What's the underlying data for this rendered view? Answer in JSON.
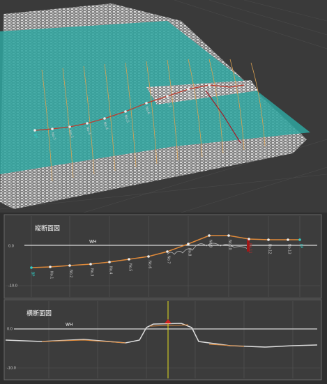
{
  "longitudinal": {
    "title": "縦断面図",
    "water_level_label": "WH",
    "y_labels": [
      "0.0",
      "-10.0"
    ],
    "stations": [
      "BP",
      "No.1",
      "No.2",
      "No.3",
      "No.4",
      "No.5",
      "No.6",
      "No.7",
      "No.8",
      "No.9",
      "No.10",
      "No.11",
      "No.12",
      "No.13",
      "EP"
    ]
  },
  "cross": {
    "title": "横断面図",
    "water_level_label": "WH",
    "y_labels": [
      "0.0",
      "-10.0"
    ]
  }
}
